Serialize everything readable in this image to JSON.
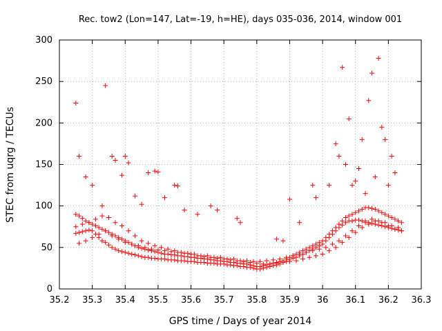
{
  "chart_data": {
    "type": "scatter",
    "title": "Rec. tow2 (Lon=147, Lat=-19, h=HE), days 035-036, 2014, window 001",
    "xlabel": "GPS time / Days of year 2014",
    "ylabel": "STEC from uqrg / TECUs",
    "xlim": [
      35.2,
      36.3
    ],
    "ylim": [
      0,
      300
    ],
    "xticks": [
      "35.2",
      "35.3",
      "35.4",
      "35.5",
      "35.6",
      "35.7",
      "35.8",
      "35.9",
      "36",
      "36.1",
      "36.2",
      "36.3"
    ],
    "yticks": [
      "0",
      "50",
      "100",
      "150",
      "200",
      "250",
      "300"
    ],
    "grid": true,
    "marker": "+",
    "marker_color": "#ff0000",
    "series": [
      {
        "name": "STEC",
        "x": [
          35.25,
          35.26,
          35.27,
          35.28,
          35.29,
          35.3,
          35.31,
          35.32,
          35.33,
          35.34,
          35.35,
          35.36,
          35.37,
          35.38,
          35.39,
          35.4,
          35.41,
          35.42,
          35.43,
          35.44,
          35.45,
          35.46,
          35.47,
          35.48,
          35.49,
          35.5,
          35.51,
          35.52,
          35.53,
          35.54,
          35.55,
          35.56,
          35.57,
          35.58,
          35.59,
          35.6,
          35.61,
          35.62,
          35.63,
          35.64,
          35.65,
          35.66,
          35.67,
          35.68,
          35.69,
          35.7,
          35.71,
          35.72,
          35.73,
          35.74,
          35.75,
          35.76,
          35.77,
          35.78,
          35.79,
          35.8,
          35.81,
          35.82,
          35.83,
          35.84,
          35.85,
          35.86,
          35.87,
          35.88,
          35.89,
          35.9,
          35.91,
          35.92,
          35.93,
          35.94,
          35.95,
          35.96,
          35.97,
          35.98,
          35.99,
          36.0,
          36.01,
          36.02,
          36.03,
          36.04,
          36.05,
          36.06,
          36.07,
          36.08,
          36.09,
          36.1,
          36.11,
          36.12,
          36.13,
          36.14,
          36.15,
          36.16,
          36.17,
          36.18,
          36.19,
          36.2,
          36.21,
          36.22,
          36.23,
          36.24,
          35.25,
          35.26,
          35.27,
          35.28,
          35.29,
          35.3,
          35.31,
          35.32,
          35.33,
          35.34,
          35.35,
          35.36,
          35.37,
          35.38,
          35.39,
          35.4,
          35.41,
          35.42,
          35.43,
          35.44,
          35.45,
          35.46,
          35.47,
          35.48,
          35.49,
          35.5,
          35.51,
          35.52,
          35.53,
          35.54,
          35.55,
          35.56,
          35.57,
          35.58,
          35.59,
          35.6,
          35.61,
          35.62,
          35.63,
          35.64,
          35.65,
          35.66,
          35.67,
          35.68,
          35.69,
          35.7,
          35.71,
          35.72,
          35.73,
          35.74,
          35.75,
          35.76,
          35.77,
          35.78,
          35.79,
          35.8,
          35.81,
          35.82,
          35.83,
          35.84,
          35.85,
          35.86,
          35.87,
          35.88,
          35.89,
          35.9,
          35.91,
          35.92,
          35.93,
          35.94,
          35.95,
          35.96,
          35.97,
          35.98,
          35.99,
          36.0,
          36.01,
          36.02,
          36.03,
          36.04,
          36.05,
          36.06,
          36.07,
          36.08,
          36.09,
          36.1,
          36.11,
          36.12,
          36.13,
          36.14,
          36.15,
          36.16,
          36.17,
          36.18,
          36.19,
          36.2,
          36.21,
          36.22,
          36.23,
          36.24,
          35.25,
          35.27,
          35.29,
          35.31,
          35.33,
          35.35,
          35.37,
          35.39,
          35.41,
          35.43,
          35.45,
          35.47,
          35.49,
          35.51,
          35.53,
          35.55,
          35.57,
          35.59,
          35.61,
          35.63,
          35.65,
          35.67,
          35.69,
          35.71,
          35.73,
          35.75,
          35.77,
          35.79,
          35.81,
          35.83,
          35.85,
          35.87,
          35.89,
          35.91,
          35.93,
          35.95,
          35.97,
          35.99,
          36.01,
          36.03,
          36.05,
          36.07,
          36.09,
          36.11,
          36.13,
          36.15,
          36.17,
          36.19,
          36.21,
          36.23,
          35.26,
          35.28,
          35.3,
          35.32,
          35.34,
          35.36,
          35.38,
          35.4,
          35.42,
          35.44,
          35.46,
          35.48,
          35.5,
          35.52,
          35.54,
          35.56,
          35.58,
          35.6,
          35.62,
          35.64,
          35.66,
          35.68,
          35.7,
          35.72,
          35.74,
          35.76,
          35.78,
          35.8,
          35.82,
          35.84,
          35.86,
          35.88,
          35.9,
          35.92,
          35.94,
          35.96,
          35.98,
          36.0,
          36.02,
          36.04,
          36.06,
          36.08,
          36.1,
          36.12,
          36.14,
          36.16,
          36.18,
          36.2,
          36.22,
          36.24,
          35.25,
          35.26,
          35.28,
          35.3,
          35.33,
          35.34,
          35.36,
          35.37,
          35.39,
          35.4,
          35.41,
          35.43,
          35.45,
          35.47,
          35.49,
          35.5,
          35.52,
          35.55,
          35.56,
          35.58,
          35.62,
          35.66,
          35.68,
          35.74,
          35.75,
          35.86,
          35.88,
          35.9,
          35.93,
          35.97,
          35.98,
          36.02,
          36.04,
          36.05,
          36.06,
          36.07,
          36.08,
          36.09,
          36.1,
          36.11,
          36.12,
          36.13,
          36.14,
          36.15,
          36.16,
          36.17,
          36.18,
          36.19,
          36.2,
          36.21,
          36.22
        ],
        "y": [
          67,
          68,
          69,
          70,
          71,
          70,
          66,
          62,
          58,
          56,
          53,
          50,
          48,
          46,
          45,
          44,
          43,
          42,
          41,
          40,
          39,
          38,
          38,
          37,
          37,
          36,
          36,
          36,
          35,
          35,
          35,
          34,
          34,
          34,
          33,
          33,
          33,
          32,
          32,
          32,
          31,
          31,
          31,
          30,
          30,
          30,
          29,
          29,
          28,
          28,
          27,
          27,
          26,
          26,
          25,
          24,
          24,
          25,
          26,
          27,
          28,
          29,
          30,
          32,
          33,
          35,
          37,
          38,
          40,
          42,
          44,
          46,
          48,
          50,
          52,
          54,
          58,
          62,
          66,
          70,
          74,
          77,
          80,
          82,
          82,
          83,
          83,
          82,
          82,
          80,
          79,
          78,
          77,
          76,
          75,
          74,
          73,
          72,
          71,
          70,
          90,
          88,
          85,
          82,
          80,
          78,
          76,
          74,
          72,
          70,
          68,
          66,
          64,
          62,
          60,
          58,
          56,
          54,
          52,
          50,
          49,
          48,
          47,
          46,
          45,
          44,
          43,
          42,
          42,
          41,
          41,
          40,
          40,
          39,
          39,
          38,
          38,
          37,
          37,
          36,
          36,
          35,
          35,
          34,
          34,
          33,
          33,
          32,
          32,
          31,
          31,
          30,
          30,
          29,
          28,
          27,
          27,
          28,
          29,
          30,
          31,
          32,
          33,
          34,
          36,
          38,
          40,
          42,
          44,
          46,
          48,
          50,
          52,
          54,
          56,
          58,
          62,
          66,
          70,
          74,
          78,
          82,
          86,
          88,
          90,
          92,
          94,
          96,
          98,
          98,
          97,
          96,
          94,
          92,
          90,
          88,
          86,
          84,
          82,
          80,
          75,
          78,
          80,
          84,
          88,
          86,
          80,
          76,
          70,
          64,
          58,
          55,
          52,
          50,
          48,
          46,
          44,
          43,
          42,
          40,
          40,
          38,
          38,
          36,
          36,
          34,
          34,
          33,
          33,
          34,
          35,
          36,
          38,
          40,
          42,
          44,
          46,
          48,
          50,
          54,
          58,
          64,
          70,
          76,
          80,
          84,
          82,
          80,
          76,
          74,
          55,
          58,
          62,
          66,
          70,
          64,
          60,
          56,
          54,
          52,
          50,
          48,
          47,
          46,
          45,
          44,
          43,
          42,
          40,
          39,
          38,
          37,
          36,
          35,
          34,
          33,
          32,
          31,
          30,
          30,
          31,
          32,
          33,
          34,
          36,
          38,
          40,
          42,
          46,
          50,
          56,
          62,
          68,
          74,
          78,
          82,
          80,
          76,
          72,
          70,
          224,
          160,
          135,
          125,
          100,
          245,
          160,
          155,
          137,
          160,
          152,
          112,
          102,
          140,
          142,
          141,
          110,
          125,
          124,
          95,
          90,
          100,
          95,
          85,
          80,
          60,
          58,
          108,
          80,
          125,
          110,
          125,
          175,
          160,
          267,
          150,
          205,
          125,
          130,
          145,
          180,
          115,
          227,
          260,
          135,
          278,
          195,
          180,
          125,
          160,
          140
        ]
      }
    ]
  }
}
